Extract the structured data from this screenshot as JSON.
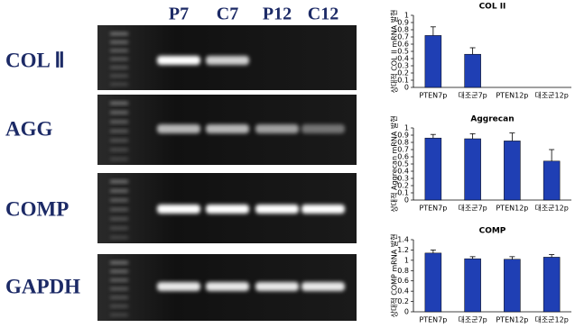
{
  "gel": {
    "lanes": [
      "P7",
      "C7",
      "P12",
      "C12"
    ],
    "rows": [
      "COL Ⅱ",
      "AGG",
      "COMP",
      "GAPDH"
    ]
  },
  "chart_data": [
    {
      "type": "bar",
      "title": "COL II",
      "y_label": "상대적 COL II mRNA 발현",
      "categories": [
        "PTEN7p",
        "대조군7p",
        "PTEN12p",
        "대조군12p"
      ],
      "values": [
        0.72,
        0.46,
        0,
        0
      ],
      "errors": [
        0.12,
        0.09,
        0,
        0
      ],
      "color": "#1f3fb4",
      "ylim": [
        0,
        1
      ],
      "yticks": [
        0,
        0.1,
        0.2,
        0.3,
        0.4,
        0.5,
        0.6,
        0.7,
        0.8,
        0.9,
        1
      ]
    },
    {
      "type": "bar",
      "title": "Aggrecan",
      "y_label": "상대적 Aggrecan mRNA 발현",
      "categories": [
        "PTEN7p",
        "대조군7p",
        "PTEN12p",
        "대조군12p"
      ],
      "values": [
        0.86,
        0.85,
        0.82,
        0.54
      ],
      "errors": [
        0.05,
        0.07,
        0.11,
        0.16
      ],
      "color": "#1f3fb4",
      "ylim": [
        0,
        1
      ],
      "yticks": [
        0,
        0.1,
        0.2,
        0.3,
        0.4,
        0.5,
        0.6,
        0.7,
        0.8,
        0.9,
        1
      ]
    },
    {
      "type": "bar",
      "title": "COMP",
      "y_label": "상대적 COMP mRNA 발현",
      "categories": [
        "PTEN7p",
        "대조군7p",
        "PTEN12p",
        "대조군12p"
      ],
      "values": [
        1.14,
        1.03,
        1.02,
        1.06
      ],
      "errors": [
        0.06,
        0.04,
        0.05,
        0.05
      ],
      "color": "#1f3fb4",
      "ylim": [
        0,
        1.4
      ],
      "yticks": [
        0,
        0.2,
        0.4,
        0.6,
        0.8,
        1,
        1.2,
        1.4
      ]
    }
  ]
}
